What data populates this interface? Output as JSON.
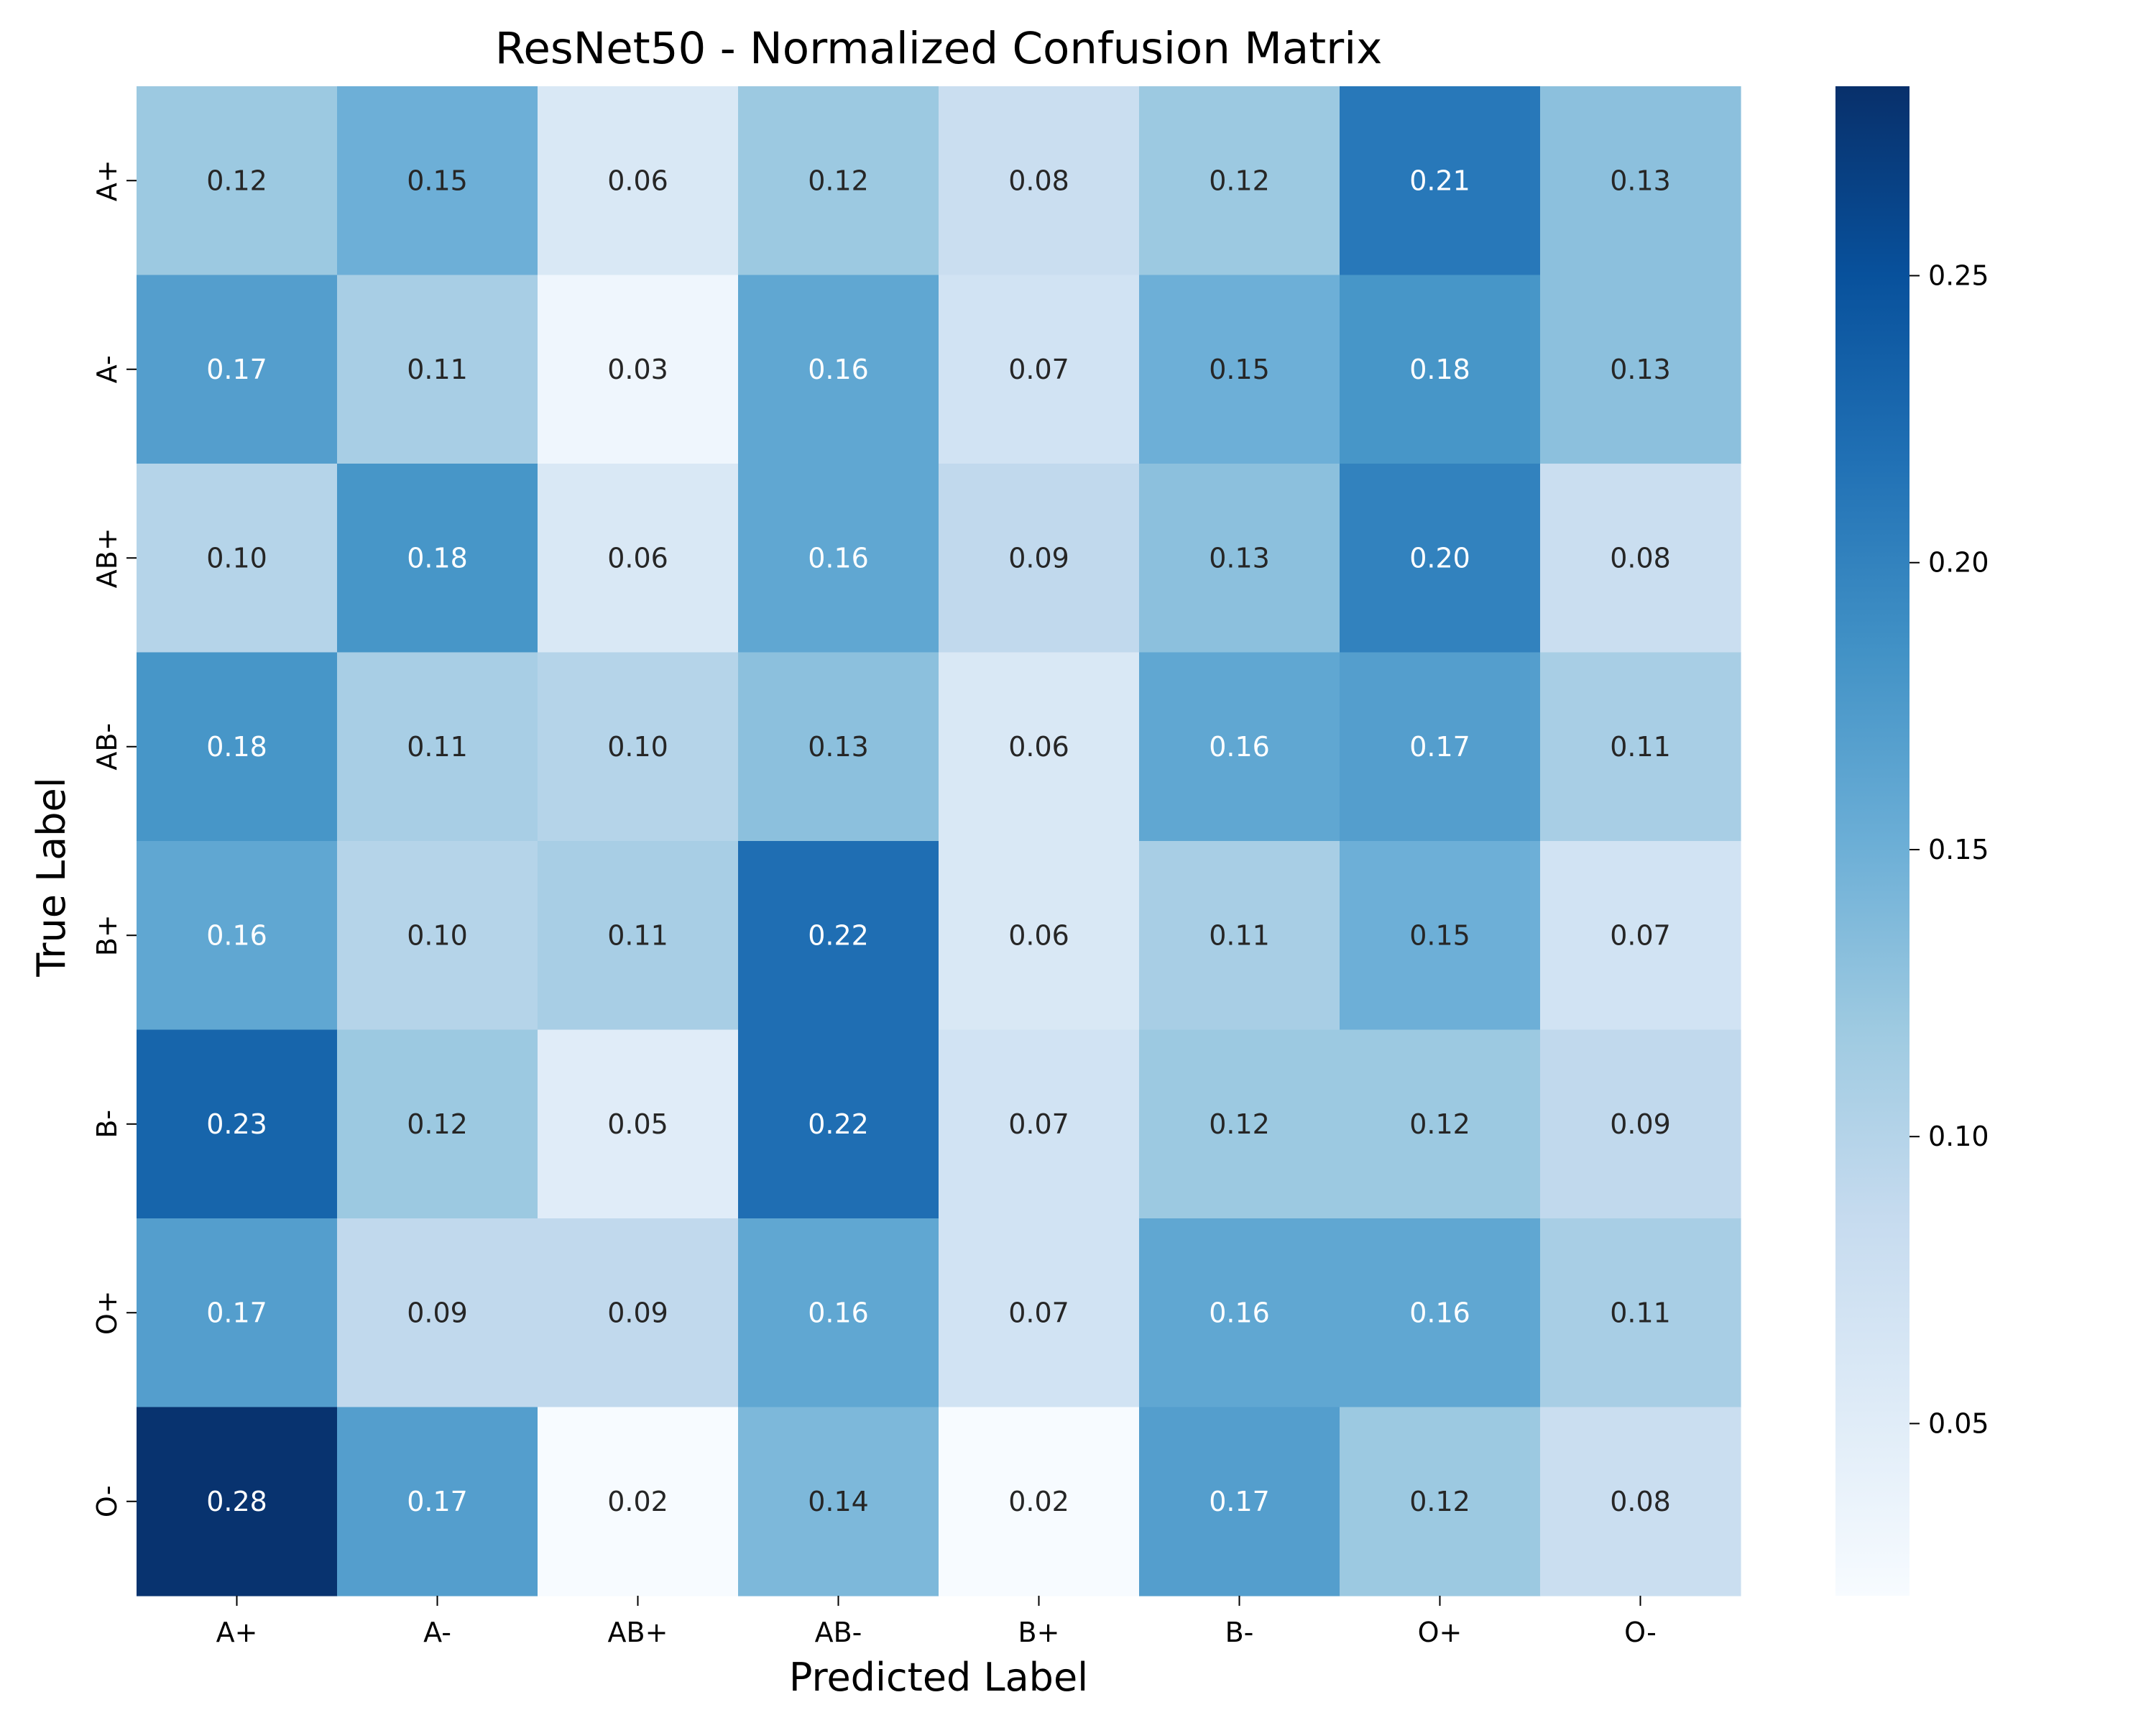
{
  "chart_data": {
    "type": "heatmap",
    "title": "ResNet50 - Normalized Confusion Matrix",
    "xlabel": "Predicted Label",
    "ylabel": "True Label",
    "x_categories": [
      "A+",
      "A-",
      "AB+",
      "AB-",
      "B+",
      "B-",
      "O+",
      "O-"
    ],
    "y_categories": [
      "A+",
      "A-",
      "AB+",
      "AB-",
      "B+",
      "B-",
      "O+",
      "O-"
    ],
    "values": [
      [
        0.12,
        0.15,
        0.06,
        0.12,
        0.08,
        0.12,
        0.21,
        0.13
      ],
      [
        0.17,
        0.11,
        0.03,
        0.16,
        0.07,
        0.15,
        0.18,
        0.13
      ],
      [
        0.1,
        0.18,
        0.06,
        0.16,
        0.09,
        0.13,
        0.2,
        0.08
      ],
      [
        0.18,
        0.11,
        0.1,
        0.13,
        0.06,
        0.16,
        0.17,
        0.11
      ],
      [
        0.16,
        0.1,
        0.11,
        0.22,
        0.06,
        0.11,
        0.15,
        0.07
      ],
      [
        0.23,
        0.12,
        0.05,
        0.22,
        0.07,
        0.12,
        0.12,
        0.09
      ],
      [
        0.17,
        0.09,
        0.09,
        0.16,
        0.07,
        0.16,
        0.16,
        0.11
      ],
      [
        0.28,
        0.17,
        0.02,
        0.14,
        0.02,
        0.17,
        0.12,
        0.08
      ]
    ],
    "value_format": "0.00",
    "colormap": "Blues",
    "colorbar": {
      "range": [
        0.02,
        0.283
      ],
      "ticks": [
        0.05,
        0.1,
        0.15,
        0.2,
        0.25
      ],
      "tick_labels": [
        "0.05",
        "0.10",
        "0.15",
        "0.20",
        "0.25"
      ]
    },
    "annotation_colors": {
      "dark_text": "#262626",
      "light_text": "#ffffff"
    },
    "grid": false,
    "legend": "colorbar-right"
  }
}
